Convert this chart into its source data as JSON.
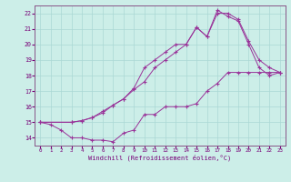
{
  "xlabel": "Windchill (Refroidissement éolien,°C)",
  "bg_color": "#cceee8",
  "grid_color": "#aad8d4",
  "line_color": "#993399",
  "xlim": [
    -0.5,
    23.5
  ],
  "ylim": [
    13.5,
    22.5
  ],
  "xtick_labels": [
    "0",
    "1",
    "2",
    "3",
    "4",
    "5",
    "6",
    "7",
    "8",
    "9",
    "10",
    "11",
    "12",
    "13",
    "14",
    "15",
    "16",
    "17",
    "18",
    "19",
    "20",
    "21",
    "22",
    "23"
  ],
  "xticks": [
    0,
    1,
    2,
    3,
    4,
    5,
    6,
    7,
    8,
    9,
    10,
    11,
    12,
    13,
    14,
    15,
    16,
    17,
    18,
    19,
    20,
    21,
    22,
    23
  ],
  "yticks": [
    14,
    15,
    16,
    17,
    18,
    19,
    20,
    21,
    22
  ],
  "line1_x": [
    0,
    1,
    2,
    3,
    4,
    5,
    6,
    7,
    8,
    9,
    10,
    11,
    12,
    13,
    14,
    15,
    16,
    17,
    18,
    19,
    20,
    21,
    22,
    23
  ],
  "line1_y": [
    15.0,
    14.85,
    14.5,
    14.0,
    14.0,
    13.85,
    13.85,
    13.75,
    14.3,
    14.5,
    15.5,
    15.5,
    16.0,
    16.0,
    16.0,
    16.2,
    17.0,
    17.5,
    18.2,
    18.2,
    18.2,
    18.2,
    18.2,
    18.2
  ],
  "line2_x": [
    0,
    3,
    4,
    5,
    6,
    7,
    8,
    9,
    10,
    11,
    12,
    13,
    14,
    15,
    16,
    17,
    18,
    19,
    20,
    21,
    22,
    23
  ],
  "line2_y": [
    15.0,
    15.0,
    15.1,
    15.3,
    15.6,
    16.1,
    16.5,
    17.1,
    17.6,
    18.5,
    19.0,
    19.5,
    20.0,
    21.1,
    20.5,
    22.0,
    22.0,
    21.6,
    20.2,
    19.0,
    18.5,
    18.2
  ],
  "line3_x": [
    0,
    3,
    4,
    5,
    6,
    7,
    8,
    9,
    10,
    11,
    12,
    13,
    14,
    15,
    16,
    17,
    18,
    19,
    20,
    21,
    22,
    23
  ],
  "line3_y": [
    15.0,
    15.0,
    15.1,
    15.3,
    15.7,
    16.1,
    16.5,
    17.2,
    18.5,
    19.0,
    19.5,
    20.0,
    20.0,
    21.1,
    20.5,
    22.2,
    21.8,
    21.5,
    20.0,
    18.5,
    18.0,
    18.2
  ]
}
